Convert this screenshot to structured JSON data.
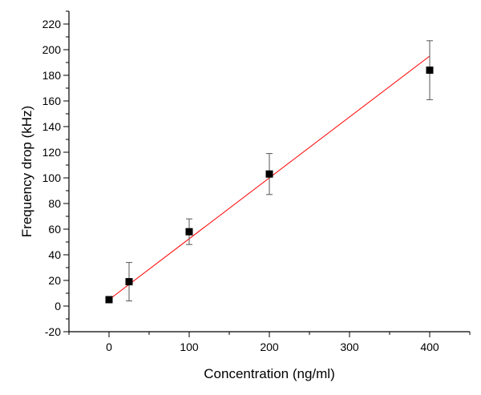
{
  "chart_data": {
    "type": "scatter",
    "title": "",
    "xlabel": "Concentration (ng/ml)",
    "ylabel": "Frequency drop (kHz)",
    "xlim": [
      -50,
      450
    ],
    "ylim": [
      -20,
      230
    ],
    "x_ticks": [
      0,
      100,
      200,
      300,
      400
    ],
    "y_ticks": [
      -20,
      0,
      20,
      40,
      60,
      80,
      100,
      120,
      140,
      160,
      180,
      200,
      220
    ],
    "grid": false,
    "legend": "none",
    "series": [
      {
        "x": [
          0,
          25,
          100,
          200,
          400
        ],
        "y": [
          5,
          19,
          58,
          103,
          184
        ],
        "error": [
          1,
          15,
          10,
          16,
          23
        ],
        "marker": "square",
        "color": "#000000"
      }
    ],
    "fit_line": {
      "x": [
        0,
        400
      ],
      "y": [
        5,
        195
      ],
      "color": "#ff0000"
    }
  }
}
